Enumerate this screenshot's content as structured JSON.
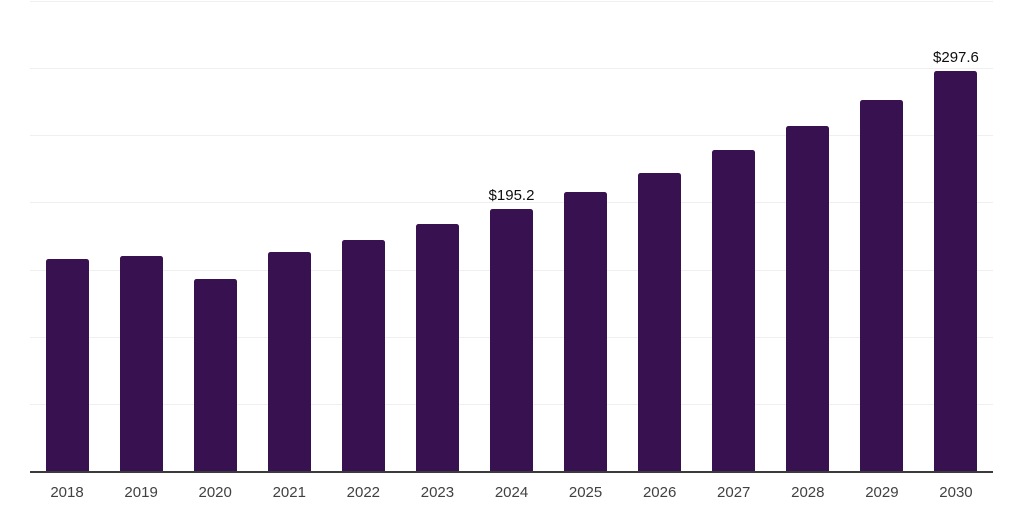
{
  "chart_data": {
    "type": "bar",
    "title": "",
    "xlabel": "",
    "ylabel": "",
    "categories": [
      "2018",
      "2019",
      "2020",
      "2021",
      "2022",
      "2023",
      "2024",
      "2025",
      "2026",
      "2027",
      "2028",
      "2029",
      "2030"
    ],
    "values": [
      157.7,
      159.9,
      143.3,
      163.1,
      172.4,
      183.7,
      195.2,
      208.1,
      221.9,
      238.8,
      256.6,
      276.2,
      297.6
    ],
    "point_labels": [
      "",
      "",
      "",
      "",
      "",
      "",
      "$195.2",
      "",
      "",
      "",
      "",
      "",
      "$297.6"
    ],
    "ylim": [
      0,
      350
    ],
    "grid": {
      "horizontal": true,
      "interval": 50,
      "color": "#efefef"
    },
    "legend": "none",
    "colors": {
      "bar": "#381150",
      "axis_line": "#3b3b3b",
      "tick_label": "#414141",
      "data_label": "#0d0d0d",
      "background": "#ffffff"
    }
  }
}
